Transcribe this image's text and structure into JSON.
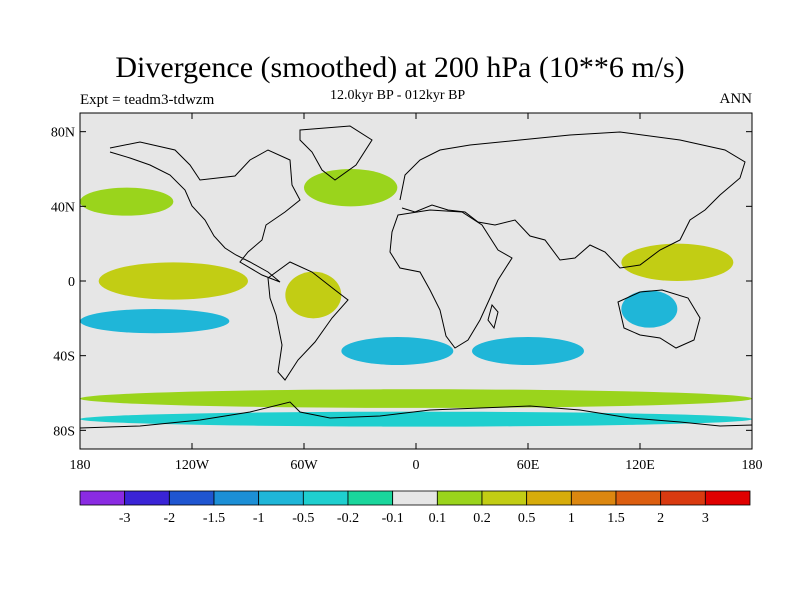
{
  "title": "Divergence (smoothed) at 200 hPa (10**6 m/s)",
  "expt_label": "Expt = teadm3-tdwzm",
  "subtitle": "12.0kyr BP - 012kyr BP",
  "season": "ANN",
  "lat_ticks": [
    "80N",
    "40N",
    "0",
    "40S",
    "80S"
  ],
  "lon_ticks": [
    "180",
    "120W",
    "60W",
    "0",
    "60E",
    "120E",
    "180"
  ],
  "colorbar": {
    "colors": [
      "#8a2be2",
      "#3a24d6",
      "#1f55d0",
      "#1c8fd6",
      "#1fb6d8",
      "#1fcfcf",
      "#1ad69c",
      "#e6e6e6",
      "#9ad41c",
      "#c2cd14",
      "#d7ac0a",
      "#dc8710",
      "#dc5e10",
      "#d93a10",
      "#e00000"
    ],
    "labels": [
      "-3",
      "-2",
      "-1.5",
      "-1",
      "-0.5",
      "-0.2",
      "-0.1",
      "0.1",
      "0.2",
      "0.5",
      "1",
      "1.5",
      "2",
      "3"
    ]
  },
  "chart_data": {
    "type": "heatmap",
    "variable": "Divergence (smoothed) at 200 hPa",
    "units": "10**6 m/s",
    "projection": "cylindrical equidistant",
    "lon_range": [
      -180,
      180
    ],
    "lat_range": [
      -90,
      90
    ],
    "levels": [
      -3,
      -2,
      -1.5,
      -1,
      -0.5,
      -0.2,
      -0.1,
      0.1,
      0.2,
      0.5,
      1,
      1.5,
      2,
      3
    ],
    "background_value_range": [
      -0.1,
      0.1
    ],
    "features": [
      {
        "region": "equatorial East Pacific",
        "lon": [
          -170,
          -90
        ],
        "lat": [
          -10,
          10
        ],
        "value": 0.5
      },
      {
        "region": "subtropical South Pacific band",
        "lon": [
          -180,
          -100
        ],
        "lat": [
          -28,
          -15
        ],
        "value": -0.5
      },
      {
        "region": "tropical South America",
        "lon": [
          -70,
          -40
        ],
        "lat": [
          -20,
          5
        ],
        "value": 0.5
      },
      {
        "region": "subtropical South Atlantic",
        "lon": [
          -40,
          20
        ],
        "lat": [
          -45,
          -30
        ],
        "value": -0.5
      },
      {
        "region": "Southern Indian Ocean",
        "lon": [
          30,
          90
        ],
        "lat": [
          -45,
          -30
        ],
        "value": -0.5
      },
      {
        "region": "Maritime Continent / W Pacific",
        "lon": [
          110,
          170
        ],
        "lat": [
          0,
          20
        ],
        "value": 0.5
      },
      {
        "region": "Indonesia south",
        "lon": [
          110,
          140
        ],
        "lat": [
          -25,
          -5
        ],
        "value": -0.5
      },
      {
        "region": "Southern Ocean ring",
        "lon": [
          -180,
          180
        ],
        "lat": [
          -68,
          -58
        ],
        "value": 0.2
      },
      {
        "region": "Antarctic coast",
        "lon": [
          -180,
          180
        ],
        "lat": [
          -78,
          -70
        ],
        "value": -0.2
      },
      {
        "region": "North Atlantic",
        "lon": [
          -60,
          -10
        ],
        "lat": [
          40,
          60
        ],
        "value": 0.2
      },
      {
        "region": "North Pacific",
        "lon": [
          -180,
          -130
        ],
        "lat": [
          35,
          50
        ],
        "value": 0.2
      }
    ]
  }
}
